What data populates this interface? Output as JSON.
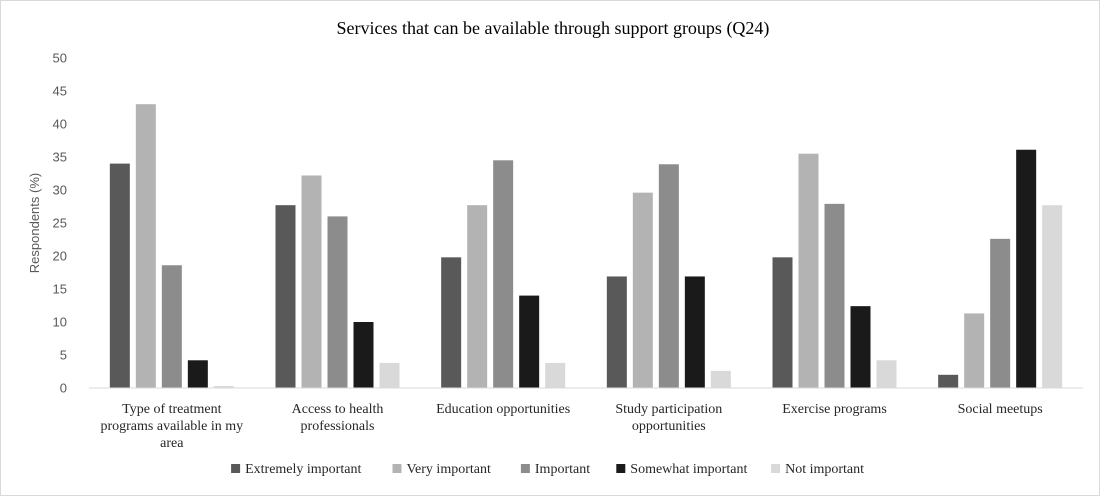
{
  "chart_data": {
    "type": "bar",
    "title": "Services that can be available through support groups (Q24)",
    "ylabel": "Respondents (%)",
    "ylim": [
      0,
      50
    ],
    "ytick_step": 5,
    "grid": false,
    "legend_position": "bottom",
    "categories": [
      [
        "Type of treatment",
        "programs available in my",
        "area"
      ],
      [
        "Access to health",
        "professionals"
      ],
      [
        "Education opportunities"
      ],
      [
        "Study participation",
        "opportunities"
      ],
      [
        "Exercise programs"
      ],
      [
        "Social meetups"
      ]
    ],
    "series": [
      {
        "name": "Extremely important",
        "color": "#595959",
        "values": [
          34,
          27.7,
          19.8,
          16.9,
          19.8,
          2
        ]
      },
      {
        "name": "Very important",
        "color": "#b3b3b3",
        "values": [
          43,
          32.2,
          27.7,
          29.6,
          35.5,
          11.3
        ]
      },
      {
        "name": "Important",
        "color": "#8c8c8c",
        "values": [
          18.6,
          26,
          34.5,
          33.9,
          27.9,
          22.6
        ]
      },
      {
        "name": "Somewhat important",
        "color": "#1a1a1a",
        "values": [
          4.2,
          10,
          14,
          16.9,
          12.4,
          36.1
        ]
      },
      {
        "name": "Not important",
        "color": "#d9d9d9",
        "values": [
          0.3,
          3.8,
          3.8,
          2.6,
          4.2,
          27.7
        ]
      }
    ]
  }
}
